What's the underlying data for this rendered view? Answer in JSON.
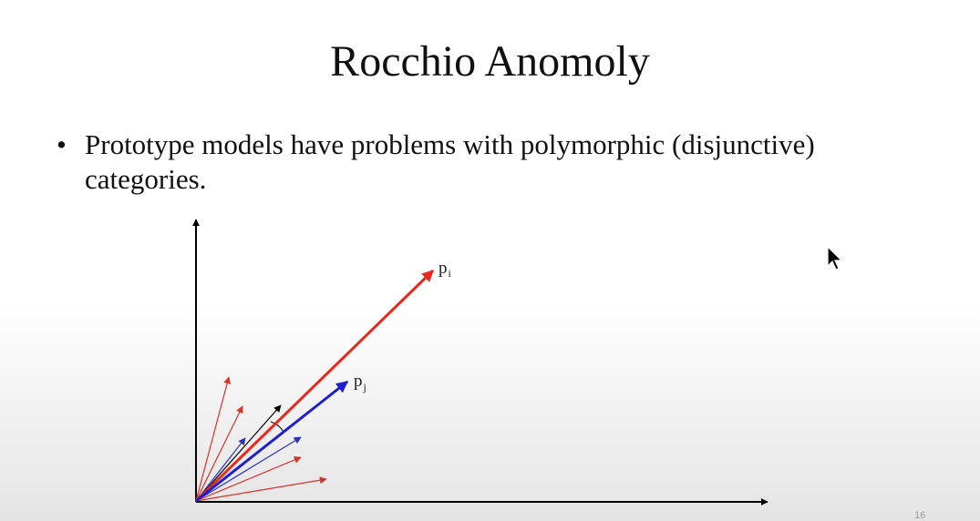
{
  "slide": {
    "title": "Rocchio Anomoly",
    "bullet_symbol": "•",
    "bullet_text": "Prototype models have problems with polymorphic (disjunctive) categories.",
    "slide_number": "16"
  },
  "diagram": {
    "prototype_labels": {
      "p_i": {
        "base": "p",
        "sub": "i"
      },
      "p_j": {
        "base": "p",
        "sub": "j"
      }
    },
    "colors": {
      "axis": "#000000",
      "prototype_i": "#e8291c",
      "prototype_j": "#1d1fd0",
      "instance_red": "#d6332a",
      "instance_blue": "#2b2fb8",
      "test_vector": "#000000"
    }
  },
  "overlay": {
    "cursor_icon": "mouse-pointer-icon"
  }
}
